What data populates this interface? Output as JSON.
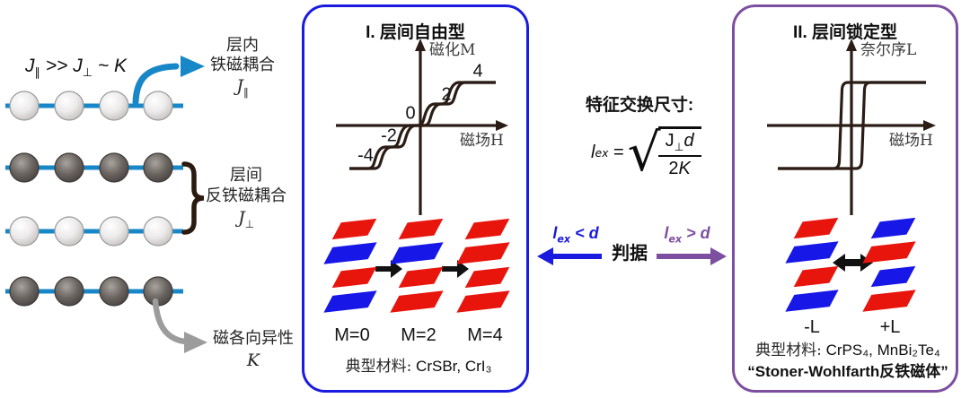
{
  "colors": {
    "accent_blue": "#1b1be0",
    "accent_purple": "#7d4fa0",
    "layer_red": "#e8150d",
    "layer_blue": "#1717e8",
    "bond_blue": "#1787c7",
    "arrow_gray": "#9c9c9c",
    "ink": "#2b1d15"
  },
  "left": {
    "relation": {
      "j1": "J",
      "j1_sub": "∥",
      "op": " >> ",
      "j2": "J",
      "j2_sub": "⊥",
      "tilde": " ~ ",
      "k": "K"
    },
    "intralayer": {
      "line1": "层内",
      "line2": "铁磁耦合",
      "symbol": "J",
      "symbol_sub": "∥"
    },
    "interlayer": {
      "line1": "层间",
      "line2": "反铁磁耦合",
      "symbol": "J",
      "symbol_sub": "⊥"
    },
    "anisotropy": {
      "line1": "磁各向异性",
      "symbol": "K"
    }
  },
  "panel_free": {
    "title": "I. 层间自由型",
    "plot": {
      "ylabel": "磁化M",
      "xlabel": "磁场H",
      "ticks": [
        "4",
        "2",
        "0",
        "-2",
        "-4"
      ]
    },
    "stacks": [
      {
        "label": "M=0",
        "layers": [
          "red",
          "blue",
          "red",
          "blue"
        ]
      },
      {
        "label": "M=2",
        "layers": [
          "red",
          "blue",
          "red",
          "red"
        ]
      },
      {
        "label": "M=4",
        "layers": [
          "red",
          "red",
          "red",
          "red"
        ]
      }
    ],
    "materials_label": "典型材料:",
    "materials_value": "CrSBr, CrI₃"
  },
  "center": {
    "title": "特征交换尺寸:",
    "formula": {
      "lhs": "l",
      "lhs_sub": "ex",
      "equals": "=",
      "radical": "√",
      "num_base": "J",
      "num_sub": "⊥",
      "num_var": "d",
      "den_coef": "2",
      "den_var": "K"
    },
    "criterion_label": "判据",
    "condition_left": {
      "symbol": "l",
      "sub": "ex",
      "rest": " < d"
    },
    "condition_right": {
      "symbol": "l",
      "sub": "ex",
      "rest": " > d"
    }
  },
  "panel_locked": {
    "title": "II. 层间锁定型",
    "plot": {
      "ylabel": "奈尔序L",
      "xlabel": "磁场H"
    },
    "stacks": [
      {
        "label": "-L",
        "layers": [
          "red",
          "blue",
          "red",
          "blue"
        ]
      },
      {
        "label": "+L",
        "layers": [
          "blue",
          "red",
          "blue",
          "red"
        ]
      }
    ],
    "materials_label": "典型材料:",
    "materials_value": "CrPS₄, MnBi₂Te₄",
    "subtitle": "“Stoner-Wohlfarth反铁磁体”"
  }
}
